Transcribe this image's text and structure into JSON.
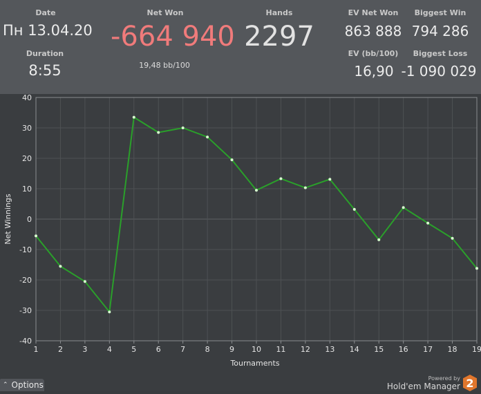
{
  "header": {
    "date_label": "Date",
    "date_value": "Пн 13.04.20",
    "duration_label": "Duration",
    "duration_value": "8:55",
    "net_won_label": "Net Won",
    "net_won_value": "-664 940",
    "net_won_rate": "19,48 bb/100",
    "hands_label": "Hands",
    "hands_value": "2297",
    "ev_net_won_label": "EV Net Won",
    "ev_net_won_value": "863 888",
    "ev_bb_label": "EV (bb/100)",
    "ev_bb_value": "16,90",
    "biggest_win_label": "Biggest Win",
    "biggest_win_value": "794 286",
    "biggest_loss_label": "Biggest Loss",
    "biggest_loss_value": "-1 090 029"
  },
  "colors": {
    "net_won": "#f07b7b",
    "line": "#2aa02a",
    "point": "#d8ffd0"
  },
  "chart_data": {
    "type": "line",
    "xlabel": "Tournaments",
    "ylabel": "Net Winnings",
    "x": [
      1,
      2,
      3,
      4,
      5,
      6,
      7,
      8,
      9,
      10,
      11,
      12,
      13,
      14,
      15,
      16,
      17,
      18,
      19
    ],
    "series": [
      {
        "values": [
          -5.5,
          -15.5,
          -20.5,
          -30.5,
          33.5,
          28.5,
          30,
          27,
          19.5,
          9.5,
          13.3,
          10.3,
          13.1,
          3.2,
          -6.8,
          3.8,
          -1.3,
          -6.3,
          -16.2
        ]
      }
    ],
    "xlim": [
      1,
      19
    ],
    "ylim": [
      -40,
      40
    ],
    "yticks": [
      -40,
      -30,
      -20,
      -10,
      0,
      10,
      20,
      30,
      40
    ],
    "grid": true
  },
  "footer": {
    "options_label": "Options",
    "powered_by": "Powered by",
    "brand_name": "Hold'em Manager",
    "brand_badge": "2"
  }
}
